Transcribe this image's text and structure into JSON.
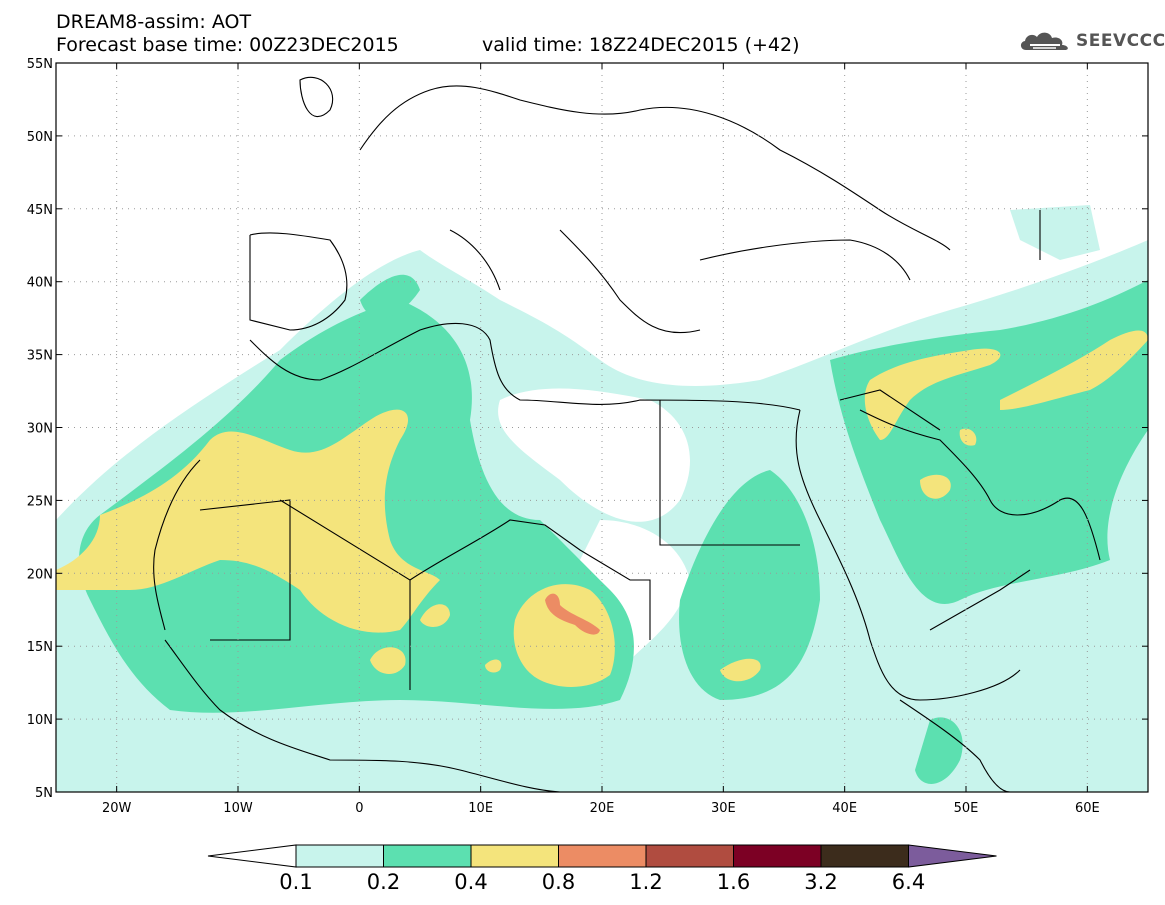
{
  "header": {
    "title_line1": "DREAM8-assim: AOT",
    "base_time": "Forecast base time: 00Z23DEC2015",
    "valid_time": "valid time: 18Z24DEC2015 (+42)"
  },
  "logo": {
    "text": "SEEVCCC",
    "color": "#555555"
  },
  "map": {
    "lon_range": [
      -25,
      65
    ],
    "lat_range": [
      5,
      55
    ],
    "lat_ticks": [
      {
        "value": 55,
        "label": "55N"
      },
      {
        "value": 50,
        "label": "50N"
      },
      {
        "value": 45,
        "label": "45N"
      },
      {
        "value": 40,
        "label": "40N"
      },
      {
        "value": 35,
        "label": "35N"
      },
      {
        "value": 30,
        "label": "30N"
      },
      {
        "value": 25,
        "label": "25N"
      },
      {
        "value": 20,
        "label": "20N"
      },
      {
        "value": 15,
        "label": "15N"
      },
      {
        "value": 10,
        "label": "10N"
      },
      {
        "value": 5,
        "label": "5N"
      }
    ],
    "lon_ticks": [
      {
        "value": -20,
        "label": "20W"
      },
      {
        "value": -10,
        "label": "10W"
      },
      {
        "value": 0,
        "label": "0"
      },
      {
        "value": 10,
        "label": "10E"
      },
      {
        "value": 20,
        "label": "20E"
      },
      {
        "value": 30,
        "label": "30E"
      },
      {
        "value": 40,
        "label": "40E"
      },
      {
        "value": 50,
        "label": "50E"
      },
      {
        "value": 60,
        "label": "60E"
      }
    ],
    "grid": true
  },
  "colorbar": {
    "colors": [
      "#ffffff",
      "#c8f4ec",
      "#5ce0b0",
      "#f4e47c",
      "#ec8c64",
      "#b04c40",
      "#7c0024",
      "#3c2c1c",
      "#7c5c9c"
    ],
    "labels": [
      "0.1",
      "0.2",
      "0.4",
      "0.8",
      "1.2",
      "1.6",
      "3.2",
      "6.4"
    ]
  }
}
